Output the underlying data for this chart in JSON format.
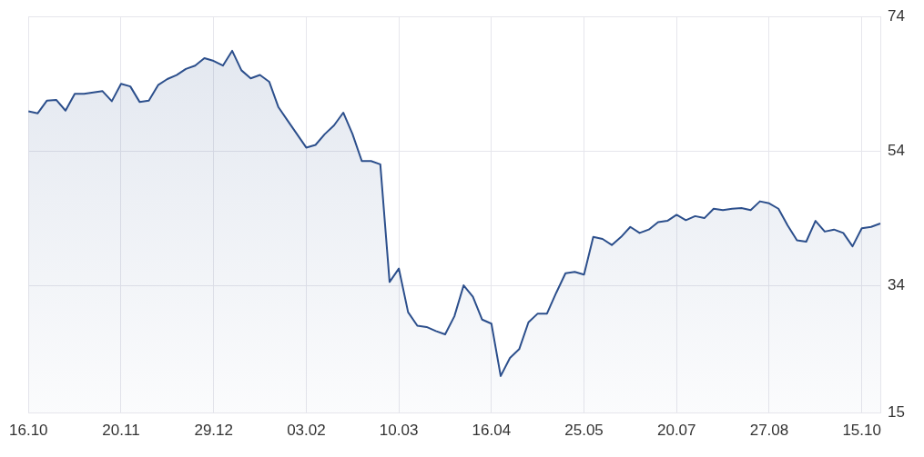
{
  "chart_data": {
    "type": "area",
    "categories": [
      "16.10",
      null,
      null,
      null,
      null,
      null,
      null,
      null,
      null,
      null,
      "20.11",
      null,
      null,
      null,
      null,
      null,
      null,
      null,
      null,
      null,
      "29.12",
      null,
      null,
      null,
      null,
      null,
      null,
      null,
      null,
      null,
      "03.02",
      null,
      null,
      null,
      null,
      null,
      null,
      null,
      null,
      null,
      "10.03",
      null,
      null,
      null,
      null,
      null,
      null,
      null,
      null,
      null,
      "16.04",
      null,
      null,
      null,
      null,
      null,
      null,
      null,
      null,
      null,
      "25.05",
      null,
      null,
      null,
      null,
      null,
      null,
      null,
      null,
      null,
      "20.07",
      null,
      null,
      null,
      null,
      null,
      null,
      null,
      null,
      null,
      "27.08",
      null,
      null,
      null,
      null,
      null,
      null,
      null,
      null,
      null,
      "15.10",
      null,
      null
    ],
    "series": [
      {
        "color": "#2c4f8c",
        "values": [
          59.9,
          59.6,
          61.5,
          61.6,
          60.0,
          62.5,
          62.5,
          62.7,
          62.9,
          61.4,
          64.0,
          63.6,
          61.3,
          61.5,
          63.8,
          64.7,
          65.3,
          66.2,
          66.7,
          67.8,
          67.4,
          66.7,
          68.9,
          66.0,
          64.8,
          65.3,
          64.3,
          60.5,
          58.5,
          56.5,
          54.5,
          54.9,
          56.5,
          57.8,
          59.7,
          56.5,
          52.5,
          52.5,
          52.0,
          34.5,
          36.5,
          30.0,
          28.0,
          27.8,
          27.2,
          26.7,
          29.4,
          34.0,
          32.3,
          28.9,
          28.3,
          20.5,
          23.2,
          24.5,
          28.5,
          29.8,
          29.8,
          32.9,
          35.8,
          36.0,
          35.6,
          41.2,
          40.9,
          40.0,
          41.2,
          42.7,
          41.8,
          42.3,
          43.4,
          43.6,
          44.5,
          43.7,
          44.3,
          44.0,
          45.4,
          45.2,
          45.4,
          45.5,
          45.2,
          46.5,
          46.2,
          45.4,
          42.9,
          40.7,
          40.5,
          43.6,
          42.0,
          42.3,
          41.8,
          39.8,
          42.5,
          42.7,
          43.2
        ]
      }
    ],
    "ylim": [
      15,
      74
    ],
    "yticks": [
      15,
      34,
      54,
      74
    ],
    "grid": true
  }
}
